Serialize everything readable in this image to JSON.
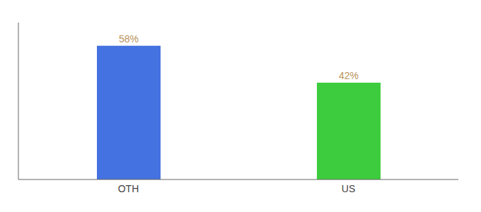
{
  "chart_data": {
    "type": "bar",
    "categories": [
      "OTH",
      "US"
    ],
    "values": [
      58,
      42
    ],
    "colors": [
      "#4472e0",
      "#3dcc3d"
    ],
    "ylim": [
      0,
      68
    ],
    "data_labels": true,
    "value_labels": [
      "58%",
      "42%"
    ],
    "tick_labels": "x",
    "grid": false
  }
}
